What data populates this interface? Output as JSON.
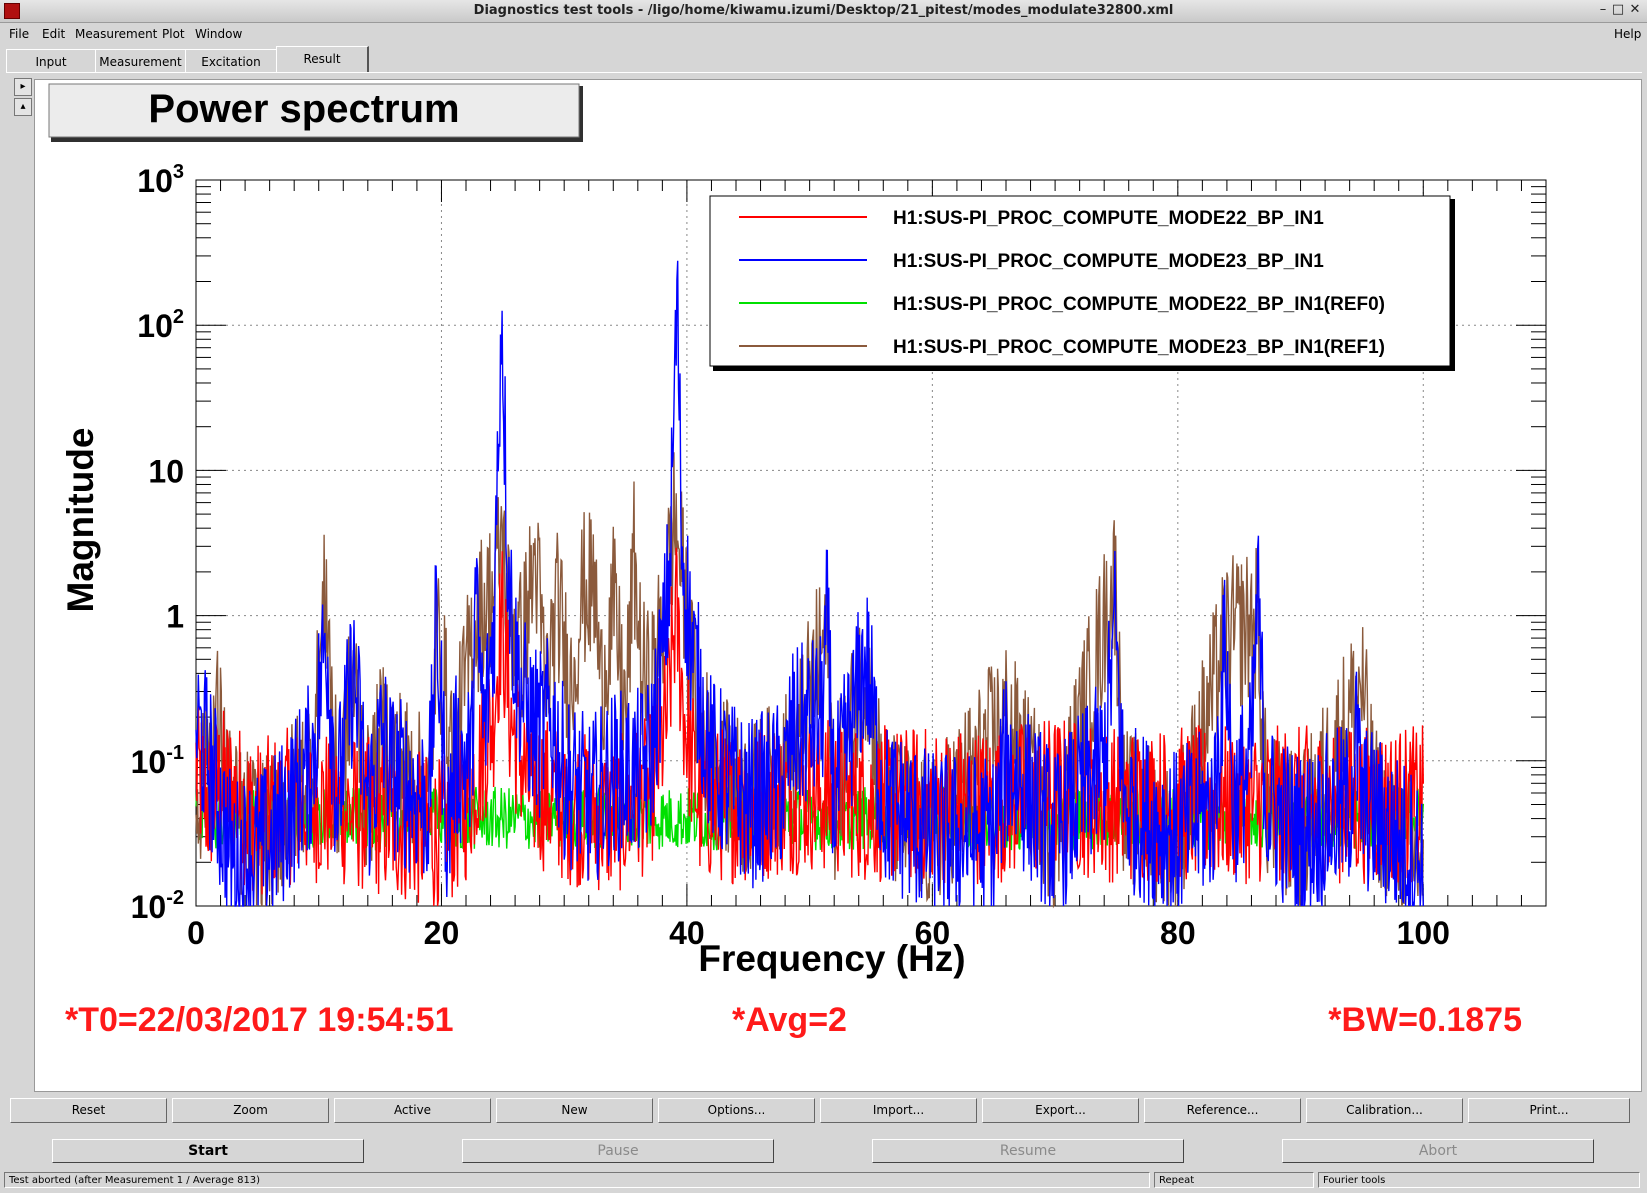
{
  "window": {
    "title": "Diagnostics test tools - /ligo/home/kiwamu.izumi/Desktop/21_pitest/modes_modulate32800.xml",
    "minimize": "–",
    "maximize": "□",
    "close": "✕"
  },
  "menu": {
    "file": "File",
    "edit": "Edit",
    "measurement": "Measurement",
    "plot": "Plot",
    "window": "Window",
    "help": "Help"
  },
  "tabs": [
    "Input",
    "Measurement",
    "Excitation",
    "Result"
  ],
  "side": {
    "expand": "▸",
    "collapse": "▴"
  },
  "plot": {
    "title": "Power spectrum",
    "footer": {
      "t0": "*T0=22/03/2017 19:54:51",
      "avg": "*Avg=2",
      "bw": "*BW=0.1875"
    }
  },
  "colors": {
    "red": "#ff0000",
    "blue": "#0000ff",
    "green": "#00e000",
    "brown": "#8b5a3c",
    "annotation": "#ff1a1a"
  },
  "chart_data": {
    "type": "line",
    "xlabel": "Frequency (Hz)",
    "ylabel": "Magnitude",
    "xlim": [
      0,
      110
    ],
    "ylim": [
      0.01,
      1000
    ],
    "ylog": true,
    "grid": true,
    "legend_position": "top-right",
    "x_ticks": [
      "0",
      "20",
      "40",
      "60",
      "80",
      "100"
    ],
    "y_ticks": [
      {
        "base": "10",
        "exp": "-2"
      },
      {
        "base": "10",
        "exp": "-1"
      },
      {
        "base": "1",
        "exp": ""
      },
      {
        "base": "10",
        "exp": ""
      },
      {
        "base": "10",
        "exp": "2"
      },
      {
        "base": "10",
        "exp": "3"
      }
    ],
    "series": [
      {
        "name": "H1:SUS-PI_PROC_COMPUTE_MODE22_BP_IN1",
        "color": "#ff0000",
        "baseline": 0.04,
        "points": [
          [
            0,
            0.09
          ],
          [
            1,
            0.05
          ],
          [
            2,
            0.07
          ],
          [
            5,
            0.04
          ],
          [
            8,
            0.05
          ],
          [
            10.6,
            0.05
          ],
          [
            15,
            0.04
          ],
          [
            20,
            0.03
          ],
          [
            22,
            0.05
          ],
          [
            24.2,
            0.2
          ],
          [
            24.9,
            1.0
          ],
          [
            25.6,
            0.2
          ],
          [
            27,
            0.07
          ],
          [
            30,
            0.05
          ],
          [
            34,
            0.04
          ],
          [
            37,
            0.06
          ],
          [
            38.4,
            0.2
          ],
          [
            39.1,
            1.1
          ],
          [
            39.8,
            0.2
          ],
          [
            41,
            0.05
          ],
          [
            45,
            0.05
          ],
          [
            50,
            0.06
          ],
          [
            55,
            0.05
          ],
          [
            60,
            0.05
          ],
          [
            65,
            0.05
          ],
          [
            70,
            0.06
          ],
          [
            75,
            0.05
          ],
          [
            80,
            0.05
          ],
          [
            85,
            0.05
          ],
          [
            90,
            0.05
          ],
          [
            95,
            0.05
          ],
          [
            100,
            0.05
          ]
        ]
      },
      {
        "name": "H1:SUS-PI_PROC_COMPUTE_MODE23_BP_IN1",
        "color": "#0000ff",
        "baseline": 0.025,
        "points": [
          [
            0,
            0.18
          ],
          [
            1,
            0.1
          ],
          [
            3,
            0.02
          ],
          [
            6,
            0.025
          ],
          [
            9.5,
            0.1
          ],
          [
            10.6,
            0.8
          ],
          [
            11.5,
            0.05
          ],
          [
            12.8,
            0.4
          ],
          [
            14,
            0.05
          ],
          [
            15.2,
            0.15
          ],
          [
            16,
            0.08
          ],
          [
            19,
            0.05
          ],
          [
            19.6,
            0.9
          ],
          [
            20.5,
            0.03
          ],
          [
            21,
            0.1
          ],
          [
            22.5,
            0.1
          ],
          [
            22.7,
            1.4
          ],
          [
            23.5,
            0.15
          ],
          [
            24.3,
            1.0
          ],
          [
            24.9,
            160
          ],
          [
            25.4,
            2.5
          ],
          [
            26,
            0.5
          ],
          [
            27,
            0.2
          ],
          [
            28,
            0.15
          ],
          [
            29,
            0.2
          ],
          [
            30,
            0.08
          ],
          [
            32,
            0.05
          ],
          [
            34,
            0.08
          ],
          [
            36,
            0.08
          ],
          [
            37,
            0.1
          ],
          [
            38,
            0.5
          ],
          [
            38.6,
            2.0
          ],
          [
            39.2,
            160
          ],
          [
            39.6,
            3.0
          ],
          [
            40.4,
            0.6
          ],
          [
            41,
            0.3
          ],
          [
            42,
            0.1
          ],
          [
            45,
            0.05
          ],
          [
            48,
            0.07
          ],
          [
            48.5,
            0.15
          ],
          [
            51,
            0.2
          ],
          [
            51.4,
            0.9
          ],
          [
            52,
            0.05
          ],
          [
            54,
            0.3
          ],
          [
            54.6,
            0.5
          ],
          [
            56,
            0.05
          ],
          [
            60,
            0.03
          ],
          [
            65,
            0.03
          ],
          [
            66,
            0.1
          ],
          [
            70,
            0.03
          ],
          [
            74,
            0.1
          ],
          [
            74.9,
            0.9
          ],
          [
            75.6,
            0.05
          ],
          [
            80,
            0.03
          ],
          [
            83,
            0.05
          ],
          [
            83.9,
            0.7
          ],
          [
            84.5,
            0.05
          ],
          [
            86,
            0.1
          ],
          [
            86.5,
            1.4
          ],
          [
            87.2,
            0.05
          ],
          [
            90,
            0.03
          ],
          [
            94,
            0.05
          ],
          [
            94.5,
            0.15
          ],
          [
            95,
            0.05
          ],
          [
            100,
            0.02
          ]
        ]
      },
      {
        "name": "H1:SUS-PI_PROC_COMPUTE_MODE22_BP_IN1(REF0)",
        "color": "#00e000",
        "baseline": 0.04,
        "points": [
          [
            0,
            0.04
          ],
          [
            25,
            0.04
          ],
          [
            50,
            0.04
          ],
          [
            75,
            0.04
          ],
          [
            100,
            0.04
          ]
        ]
      },
      {
        "name": "H1:SUS-PI_PROC_COMPUTE_MODE23_BP_IN1(REF1)",
        "color": "#8b5a3c",
        "baseline": 0.03,
        "points": [
          [
            0,
            0.05
          ],
          [
            1.7,
            0.2
          ],
          [
            3,
            0.04
          ],
          [
            6,
            0.03
          ],
          [
            9.5,
            0.1
          ],
          [
            10.6,
            1.6
          ],
          [
            11.5,
            0.05
          ],
          [
            12.8,
            0.4
          ],
          [
            14,
            0.05
          ],
          [
            15.2,
            0.15
          ],
          [
            19,
            0.05
          ],
          [
            19.6,
            0.8
          ],
          [
            21,
            0.1
          ],
          [
            22.7,
            0.9
          ],
          [
            24.3,
            1.5
          ],
          [
            24.9,
            3.5
          ],
          [
            25.5,
            1.0
          ],
          [
            26.5,
            0.6
          ],
          [
            27.7,
            2.5
          ],
          [
            28.5,
            0.3
          ],
          [
            29.5,
            1.2
          ],
          [
            30.5,
            0.3
          ],
          [
            31.5,
            1.5
          ],
          [
            32.5,
            1.5
          ],
          [
            33,
            0.3
          ],
          [
            34,
            1.2
          ],
          [
            35,
            0.2
          ],
          [
            35.7,
            2.5
          ],
          [
            36.3,
            0.4
          ],
          [
            37,
            0.3
          ],
          [
            38,
            0.8
          ],
          [
            39,
            5.0
          ],
          [
            39.6,
            2.0
          ],
          [
            40.4,
            0.4
          ],
          [
            41,
            0.2
          ],
          [
            42,
            0.1
          ],
          [
            45,
            0.05
          ],
          [
            48.5,
            0.1
          ],
          [
            51.4,
            0.8
          ],
          [
            52,
            0.05
          ],
          [
            54.6,
            0.5
          ],
          [
            56,
            0.05
          ],
          [
            60,
            0.03
          ],
          [
            66,
            0.2
          ],
          [
            70,
            0.03
          ],
          [
            74.9,
            1.8
          ],
          [
            75.6,
            0.05
          ],
          [
            80,
            0.03
          ],
          [
            83.9,
            0.7
          ],
          [
            86.5,
            0.9
          ],
          [
            87.2,
            0.05
          ],
          [
            90,
            0.03
          ],
          [
            95,
            0.35
          ],
          [
            96,
            0.05
          ],
          [
            100,
            0.02
          ]
        ]
      }
    ]
  },
  "toolbar": [
    "Reset",
    "Zoom",
    "Active",
    "New",
    "Options...",
    "Import...",
    "Export...",
    "Reference...",
    "Calibration...",
    "Print..."
  ],
  "controls": {
    "start": "Start",
    "pause": "Pause",
    "resume": "Resume",
    "abort": "Abort"
  },
  "status": {
    "message": "Test aborted (after Measurement 1 / Average 813)",
    "repeat": "Repeat",
    "fourier": "Fourier tools"
  }
}
